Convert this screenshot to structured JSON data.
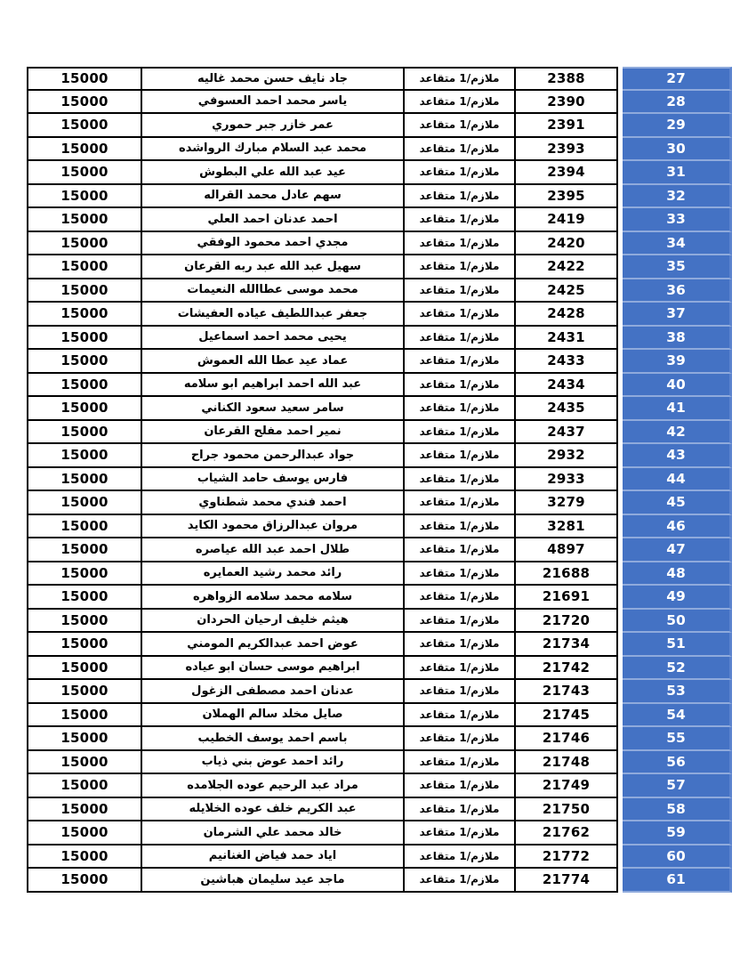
{
  "page": {
    "background": "#ffffff",
    "table": {
      "grid_color": "#000000",
      "serial_column_color": "#4472C4",
      "serial_divider_color": "#8FAADC",
      "serial_text_color": "#ffffff",
      "columns": [
        "amount",
        "name",
        "rank",
        "id",
        "serial"
      ],
      "rows": [
        {
          "serial": "27",
          "id": "2388",
          "rank": "ملازم/1 متقاعد",
          "name": "جاد نايف حسن محمد غاليه",
          "amount": "15000"
        },
        {
          "serial": "28",
          "id": "2390",
          "rank": "ملازم/1 متقاعد",
          "name": "ياسر محمد احمد العسوفي",
          "amount": "15000"
        },
        {
          "serial": "29",
          "id": "2391",
          "rank": "ملازم/1 متقاعد",
          "name": "عمر خازر جبر حموري",
          "amount": "15000"
        },
        {
          "serial": "30",
          "id": "2393",
          "rank": "ملازم/1 متقاعد",
          "name": "محمد عبد السلام مبارك الرواشده",
          "amount": "15000"
        },
        {
          "serial": "31",
          "id": "2394",
          "rank": "ملازم/1 متقاعد",
          "name": "عيد عبد الله علي البطوش",
          "amount": "15000"
        },
        {
          "serial": "32",
          "id": "2395",
          "rank": "ملازم/1 متقاعد",
          "name": "سهم عادل محمد القراله",
          "amount": "15000"
        },
        {
          "serial": "33",
          "id": "2419",
          "rank": "ملازم/1 متقاعد",
          "name": "احمد عدنان احمد العلي",
          "amount": "15000"
        },
        {
          "serial": "34",
          "id": "2420",
          "rank": "ملازم/1 متقاعد",
          "name": "مجدي احمد محمود الوفقي",
          "amount": "15000"
        },
        {
          "serial": "35",
          "id": "2422",
          "rank": "ملازم/1 متقاعد",
          "name": "سهيل عبد الله عبد ربه القرعان",
          "amount": "15000"
        },
        {
          "serial": "36",
          "id": "2425",
          "rank": "ملازم/1 متقاعد",
          "name": "محمد موسى عطاالله النعيمات",
          "amount": "15000"
        },
        {
          "serial": "37",
          "id": "2428",
          "rank": "ملازم/1 متقاعد",
          "name": "جعفر عبداللطيف عياده العفيشات",
          "amount": "15000"
        },
        {
          "serial": "38",
          "id": "2431",
          "rank": "ملازم/1 متقاعد",
          "name": "يحيى محمد احمد اسماعيل",
          "amount": "15000"
        },
        {
          "serial": "39",
          "id": "2433",
          "rank": "ملازم/1 متقاعد",
          "name": "عماد عيد عطا الله العموش",
          "amount": "15000"
        },
        {
          "serial": "40",
          "id": "2434",
          "rank": "ملازم/1 متقاعد",
          "name": "عبد الله احمد ابراهيم ابو سلامه",
          "amount": "15000"
        },
        {
          "serial": "41",
          "id": "2435",
          "rank": "ملازم/1 متقاعد",
          "name": "سامر سعيد سعود الكناني",
          "amount": "15000"
        },
        {
          "serial": "42",
          "id": "2437",
          "rank": "ملازم/1 متقاعد",
          "name": "نمير احمد مفلح القرعان",
          "amount": "15000"
        },
        {
          "serial": "43",
          "id": "2932",
          "rank": "ملازم/1 متقاعد",
          "name": "جواد عبدالرحمن محمود جراح",
          "amount": "15000"
        },
        {
          "serial": "44",
          "id": "2933",
          "rank": "ملازم/1 متقاعد",
          "name": "فارس يوسف حامد الشياب",
          "amount": "15000"
        },
        {
          "serial": "45",
          "id": "3279",
          "rank": "ملازم/1 متقاعد",
          "name": "احمد فندي محمد شطناوي",
          "amount": "15000"
        },
        {
          "serial": "46",
          "id": "3281",
          "rank": "ملازم/1 متقاعد",
          "name": "مروان عبدالرزاق محمود الكايد",
          "amount": "15000"
        },
        {
          "serial": "47",
          "id": "4897",
          "rank": "ملازم/1 متقاعد",
          "name": "طلال احمد عبد الله عياصره",
          "amount": "15000"
        },
        {
          "serial": "48",
          "id": "21688",
          "rank": "ملازم/1 متقاعد",
          "name": "رائد محمد رشيد العمايره",
          "amount": "15000"
        },
        {
          "serial": "49",
          "id": "21691",
          "rank": "ملازم/1 متقاعد",
          "name": "سلامه محمد سلامه الزواهره",
          "amount": "15000"
        },
        {
          "serial": "50",
          "id": "21720",
          "rank": "ملازم/1 متقاعد",
          "name": "هيثم خليف ارحيان الحردان",
          "amount": "15000"
        },
        {
          "serial": "51",
          "id": "21734",
          "rank": "ملازم/1 متقاعد",
          "name": "عوض احمد عبدالكريم المومني",
          "amount": "15000"
        },
        {
          "serial": "52",
          "id": "21742",
          "rank": "ملازم/1 متقاعد",
          "name": "ابراهيم موسى حسان ابو عياده",
          "amount": "15000"
        },
        {
          "serial": "53",
          "id": "21743",
          "rank": "ملازم/1 متقاعد",
          "name": "عدنان احمد مصطفى الزغول",
          "amount": "15000"
        },
        {
          "serial": "54",
          "id": "21745",
          "rank": "ملازم/1 متقاعد",
          "name": "صايل مخلد سالم الهملان",
          "amount": "15000"
        },
        {
          "serial": "55",
          "id": "21746",
          "rank": "ملازم/1 متقاعد",
          "name": "باسم احمد يوسف الخطيب",
          "amount": "15000"
        },
        {
          "serial": "56",
          "id": "21748",
          "rank": "ملازم/1 متقاعد",
          "name": "رائد احمد عوض بني ذياب",
          "amount": "15000"
        },
        {
          "serial": "57",
          "id": "21749",
          "rank": "ملازم/1 متقاعد",
          "name": "مراد عبد الرحيم عوده الجلامده",
          "amount": "15000"
        },
        {
          "serial": "58",
          "id": "21750",
          "rank": "ملازم/1 متقاعد",
          "name": "عبد الكريم خلف عوده الخلايله",
          "amount": "15000"
        },
        {
          "serial": "59",
          "id": "21762",
          "rank": "ملازم/1 متقاعد",
          "name": "خالد محمد علي الشرمان",
          "amount": "15000"
        },
        {
          "serial": "60",
          "id": "21772",
          "rank": "ملازم/1 متقاعد",
          "name": "اياد حمد فياض الغنانيم",
          "amount": "15000"
        },
        {
          "serial": "61",
          "id": "21774",
          "rank": "ملازم/1 متقاعد",
          "name": "ماجد عيد سليمان هباشين",
          "amount": "15000"
        }
      ]
    }
  }
}
